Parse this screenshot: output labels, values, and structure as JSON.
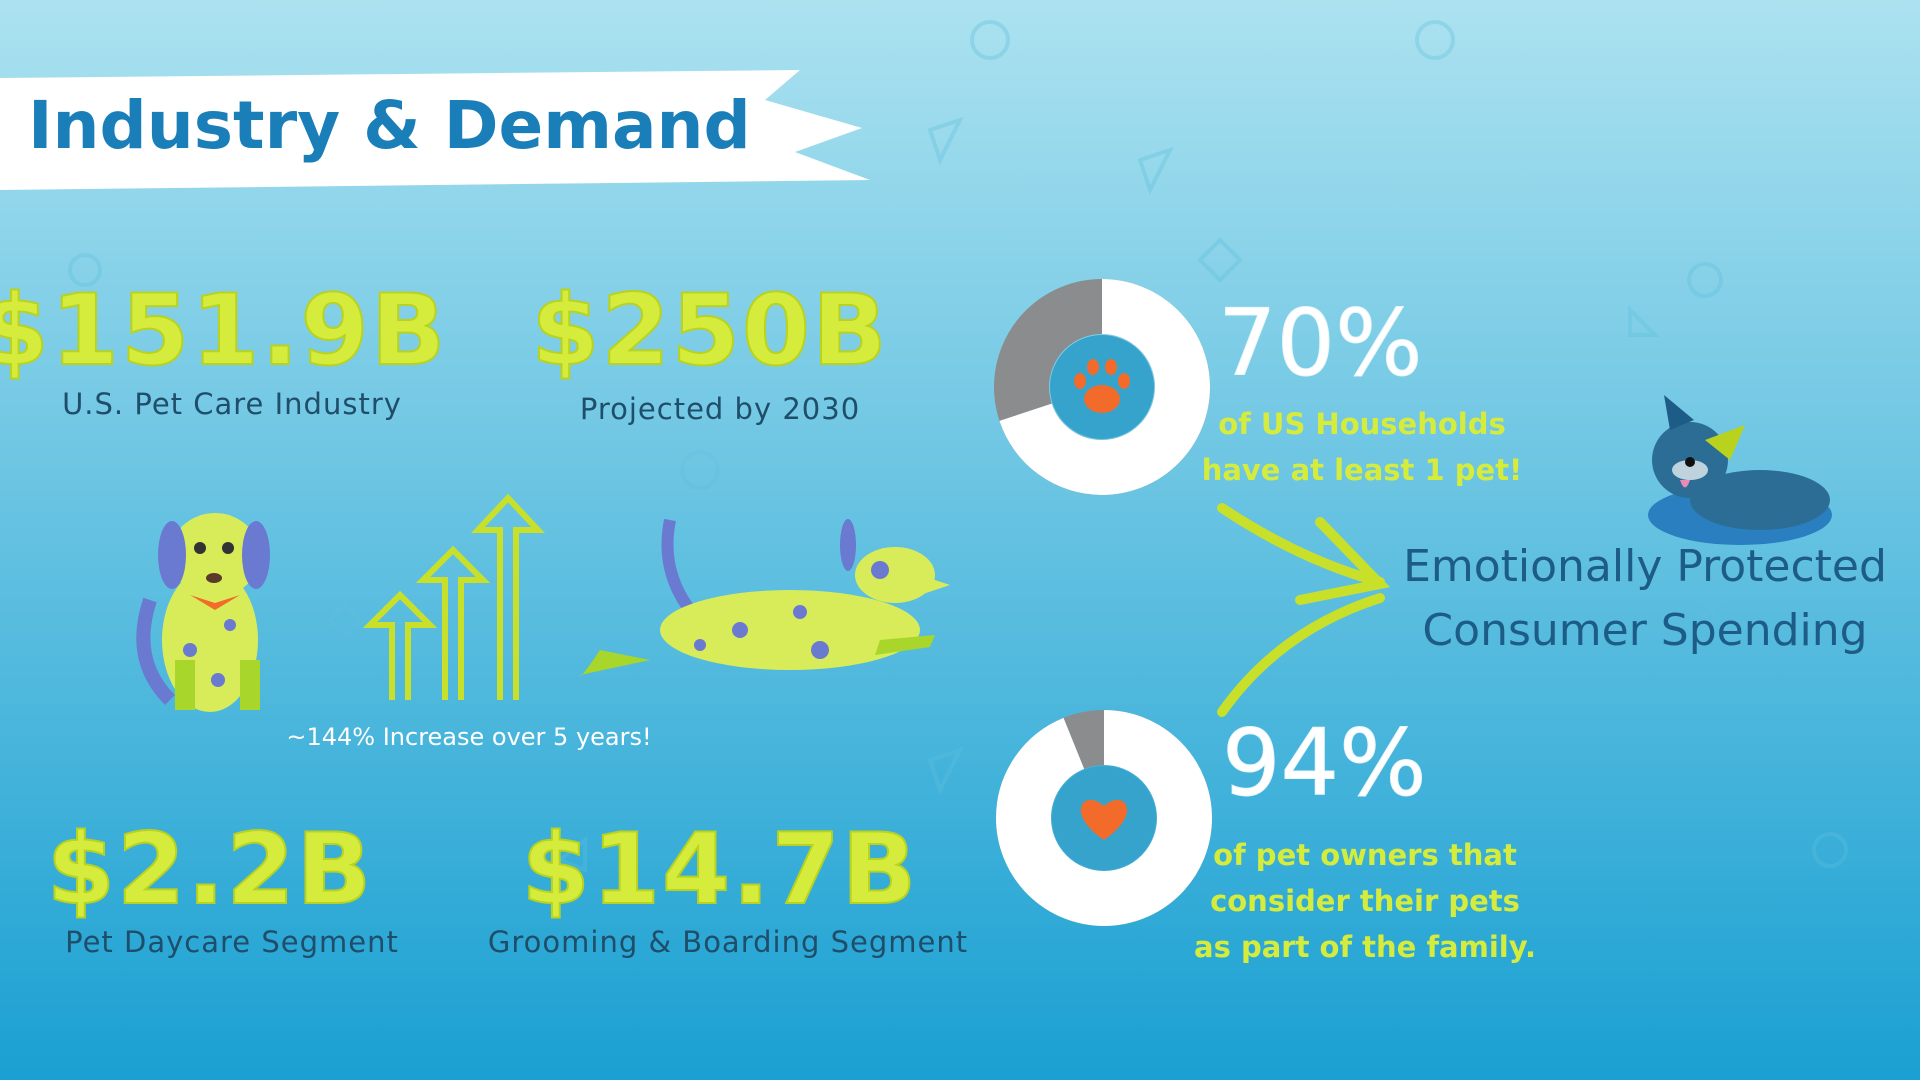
{
  "header": {
    "title": "Industry & Demand"
  },
  "stats": [
    {
      "value": "$151.9B",
      "label": "U.S. Pet Care Industry"
    },
    {
      "value": "$250B",
      "label": "Projected by 2030"
    },
    {
      "value": "$2.2B",
      "label": "Pet Daycare Segment"
    },
    {
      "value": "$14.7B",
      "label": "Grooming & Boarding Segment"
    }
  ],
  "growth_note": "~144% Increase over 5 years!",
  "donuts": [
    {
      "value": 70,
      "label": "70%",
      "caption_lines": [
        "of US Households",
        "have at least 1 pet!"
      ]
    },
    {
      "value": 94,
      "label": "94%",
      "caption_lines": [
        "of pet owners that",
        "consider their pets",
        "as part of the family."
      ]
    }
  ],
  "conclusion": [
    "Emotionally Protected",
    "Consumer Spending"
  ]
}
